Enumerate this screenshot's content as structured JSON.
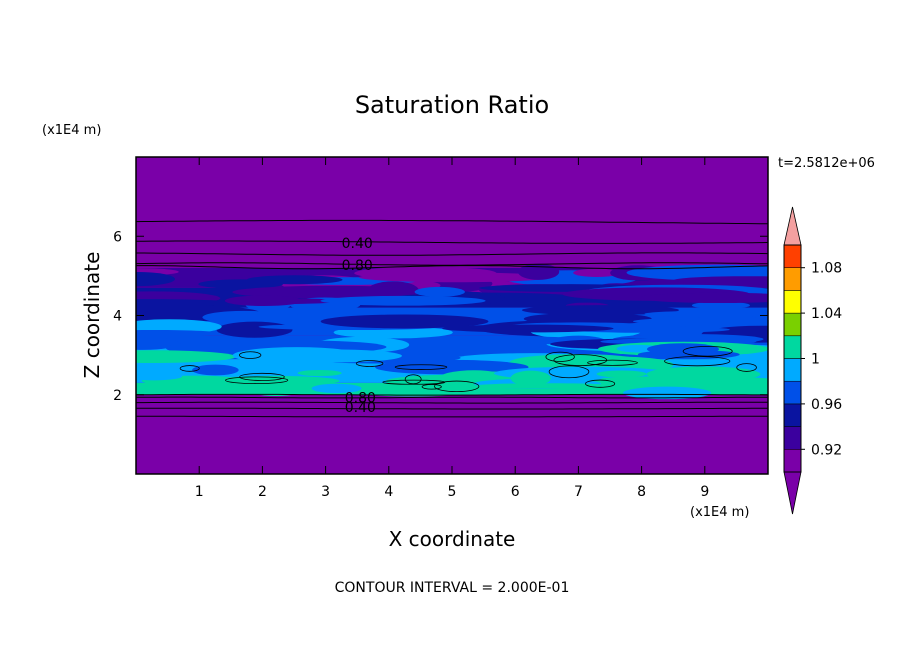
{
  "chart_data": {
    "type": "heatmap",
    "title": "Saturation Ratio",
    "xlabel": "X coordinate",
    "ylabel": "Z coordinate",
    "x_unit": "(x1E4 m)",
    "y_unit": "(x1E4 m)",
    "time_label": "t=2.5812e+06",
    "footer": "CONTOUR INTERVAL = 2.000E-01",
    "xlim": [
      0,
      10
    ],
    "ylim": [
      0,
      8
    ],
    "x_ticks": [
      1,
      2,
      3,
      4,
      5,
      6,
      7,
      8,
      9
    ],
    "x_tick_labels": [
      "1",
      "2",
      "3",
      "4",
      "5",
      "6",
      "7",
      "8",
      "9"
    ],
    "y_ticks": [
      2,
      4,
      6
    ],
    "y_tick_labels": [
      "2",
      "4",
      "6"
    ],
    "grid": false,
    "colorbar": {
      "levels": [
        0.9,
        0.92,
        0.94,
        0.96,
        0.98,
        1.0,
        1.02,
        1.04,
        1.06,
        1.08,
        1.1
      ],
      "labels": [
        "0.92",
        "0.96",
        "1",
        "1.04",
        "1.08"
      ],
      "label_values": [
        0.92,
        0.96,
        1.0,
        1.04,
        1.08
      ],
      "colors": [
        "#7a00a8",
        "#3b009e",
        "#0a14a0",
        "#0050e8",
        "#00aaff",
        "#00d8a0",
        "#7ad000",
        "#ffff00",
        "#ff9c00",
        "#ff4000",
        "#ff1010"
      ],
      "over_color": "#f4a0a0",
      "under_color": "#7a00a8"
    },
    "field_bands": [
      {
        "z0": 0.0,
        "z1": 2.0,
        "value": 0.4
      },
      {
        "z0": 2.0,
        "z1": 2.3,
        "value": 1.0
      },
      {
        "z0": 2.3,
        "z1": 2.9,
        "value": 0.99
      },
      {
        "z0": 2.9,
        "z1": 3.5,
        "value": 0.975
      },
      {
        "z0": 3.5,
        "z1": 4.2,
        "value": 0.965
      },
      {
        "z0": 4.2,
        "z1": 4.7,
        "value": 0.95
      },
      {
        "z0": 4.7,
        "z1": 5.2,
        "value": 0.93
      },
      {
        "z0": 5.2,
        "z1": 8.0,
        "value": 0.4
      }
    ],
    "contour_labels": [
      {
        "text": "0.40",
        "x": 3.5,
        "z": 5.85
      },
      {
        "text": "0.80",
        "x": 3.5,
        "z": 5.3
      },
      {
        "text": "0.80",
        "x": 3.55,
        "z": 1.95
      },
      {
        "text": "0.40",
        "x": 3.55,
        "z": 1.72
      }
    ]
  }
}
